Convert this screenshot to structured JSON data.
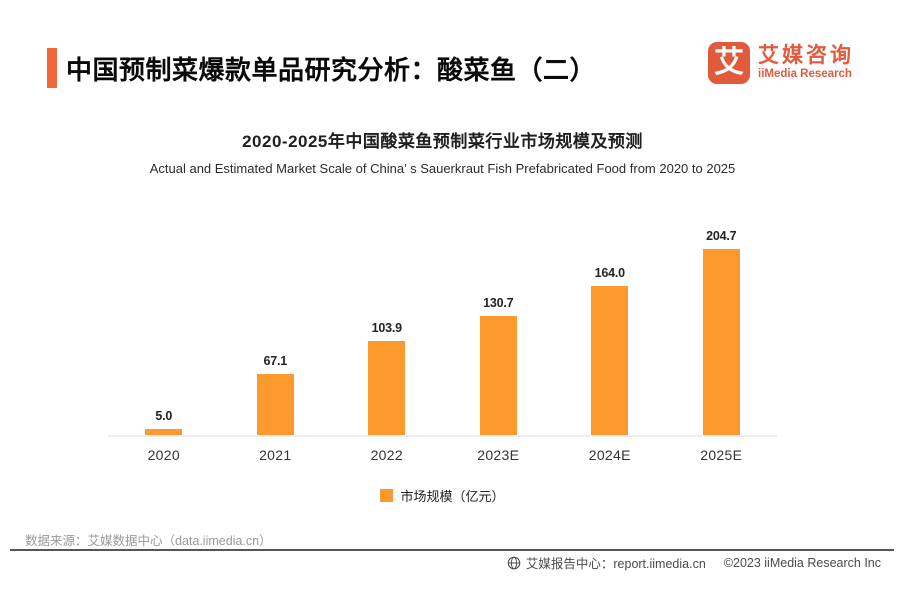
{
  "header": {
    "title": "中国预制菜爆款单品研究分析：酸菜鱼（二）",
    "logo": {
      "icon_char": "艾",
      "brand_cn": "艾媒咨询",
      "brand_en": "iiMedia Research"
    }
  },
  "chart_data": {
    "type": "bar",
    "title": "2020-2025年中国酸菜鱼预制菜行业市场规模及预测",
    "subtitle": "Actual and Estimated Market Scale of China’ s Sauerkraut Fish Prefabricated Food from 2020 to 2025",
    "categories": [
      "2020",
      "2021",
      "2022",
      "2023E",
      "2024E",
      "2025E"
    ],
    "series": [
      {
        "name": "市场规模（亿元）",
        "values": [
          5.0,
          67.1,
          103.9,
          130.7,
          164.0,
          204.7
        ]
      }
    ],
    "value_label_decimals": 1,
    "ylim": [
      0,
      230
    ],
    "grid": false,
    "legend_position": "bottom",
    "bar_color": "#FC9A2E"
  },
  "legend": {
    "label": "市场规模（亿元）"
  },
  "footer": {
    "source": "数据来源：艾媒数据中心（data.iimedia.cn）",
    "report_center": "艾媒报告中心：report.iimedia.cn",
    "copyright": "©2023  iiMedia Research  Inc"
  },
  "colors": {
    "accent": "#F2663B",
    "logo": "#E25A3C",
    "bar": "#FC9A2E"
  }
}
